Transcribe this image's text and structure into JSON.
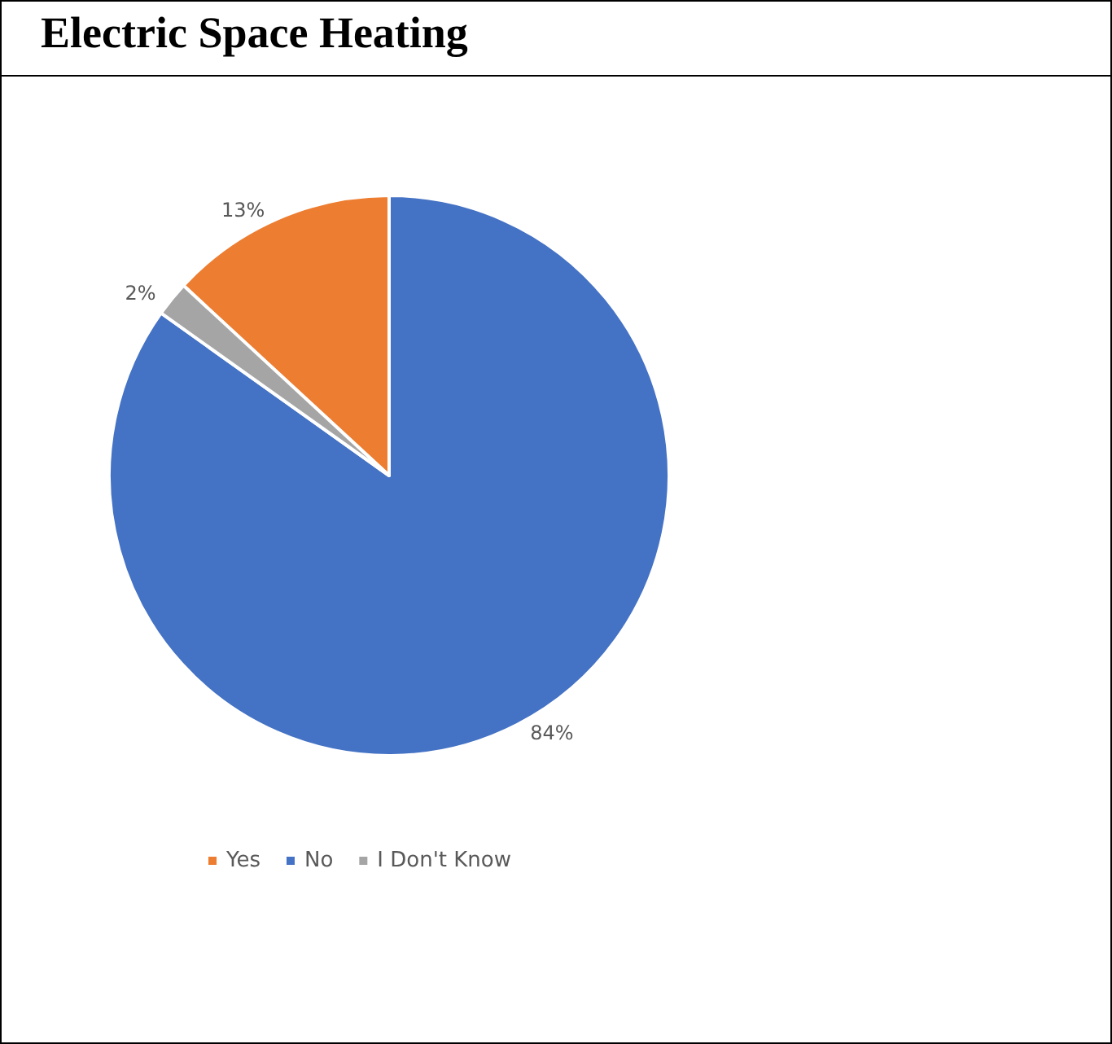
{
  "chart_data": {
    "type": "pie",
    "title": "Electric Space Heating",
    "categories": [
      "Yes",
      "No",
      "I Don't Know"
    ],
    "values": [
      13,
      84,
      2
    ],
    "colors": [
      "#ed7d31",
      "#4472c4",
      "#a5a5a5"
    ],
    "value_labels": [
      "13%",
      "84%",
      "2%"
    ],
    "legend": "bottom"
  }
}
